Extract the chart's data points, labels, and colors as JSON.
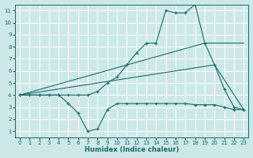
{
  "xlabel": "Humidex (Indice chaleur)",
  "xlim": [
    -0.5,
    23.5
  ],
  "ylim": [
    0.5,
    11.5
  ],
  "background_color": "#cde8e8",
  "grid_color": "#b8d4d4",
  "line_color": "#1a6b6b",
  "xticks": [
    0,
    1,
    2,
    3,
    4,
    5,
    6,
    7,
    8,
    9,
    10,
    11,
    12,
    13,
    14,
    15,
    16,
    17,
    18,
    19,
    20,
    21,
    22,
    23
  ],
  "yticks": [
    1,
    2,
    3,
    4,
    5,
    6,
    7,
    8,
    9,
    10,
    11
  ],
  "series": [
    {
      "x": [
        0,
        1,
        2,
        3,
        4,
        5,
        6,
        7,
        8,
        9,
        10,
        11,
        12,
        13,
        14,
        15,
        16,
        17,
        18,
        19,
        20,
        21,
        22,
        23
      ],
      "y": [
        4,
        4,
        4,
        4,
        4,
        3.3,
        2.5,
        1.0,
        1.2,
        2.8,
        3.3,
        3.3,
        3.3,
        3.3,
        3.3,
        3.3,
        3.3,
        3.3,
        3.2,
        3.2,
        3.2,
        3.0,
        2.8,
        2.8
      ],
      "marker": true
    },
    {
      "x": [
        0,
        1,
        2,
        3,
        4,
        5,
        6,
        7,
        8,
        9,
        10,
        11,
        12,
        13,
        14,
        15,
        16,
        17,
        18,
        19,
        20,
        21,
        22,
        23
      ],
      "y": [
        4,
        4,
        4,
        4,
        4,
        4,
        4,
        4,
        4.3,
        5.0,
        5.5,
        6.5,
        7.5,
        8.3,
        8.3,
        11.0,
        10.8,
        10.8,
        11.5,
        8.3,
        6.5,
        4.5,
        3.0,
        2.8
      ],
      "marker": true
    },
    {
      "x": [
        0,
        19,
        23
      ],
      "y": [
        4,
        8.3,
        8.3
      ],
      "marker": false
    },
    {
      "x": [
        0,
        20,
        23
      ],
      "y": [
        4,
        6.5,
        2.8
      ],
      "marker": false
    }
  ]
}
